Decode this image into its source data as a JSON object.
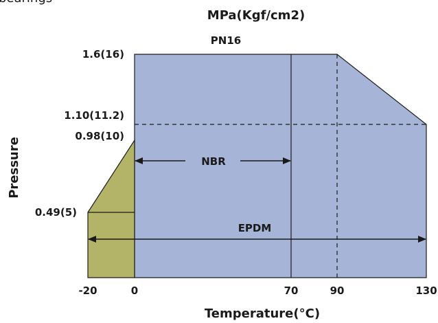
{
  "top_cut_text": "bearings",
  "pressure_unit": "MPa(Kgf/cm2)",
  "y_axis_title": "Pressure",
  "x_axis_title": "Temperature(°C)",
  "pressure_ticks": [
    "1.6(16)",
    "1.10(11.2)",
    "0.98(10)",
    "0.49(5)"
  ],
  "temperature_ticks": [
    "-20",
    "0",
    "70",
    "90",
    "130"
  ],
  "labels": {
    "pn16": "PN16",
    "nbr": "NBR",
    "epdm": "EPDM"
  },
  "colors": {
    "epdm_region": "#a6b4d8",
    "nbr_region": "#b3b467",
    "line": "#1a1a1a"
  },
  "icons": [
    "arrow-left-icon",
    "arrow-right-icon"
  ]
}
